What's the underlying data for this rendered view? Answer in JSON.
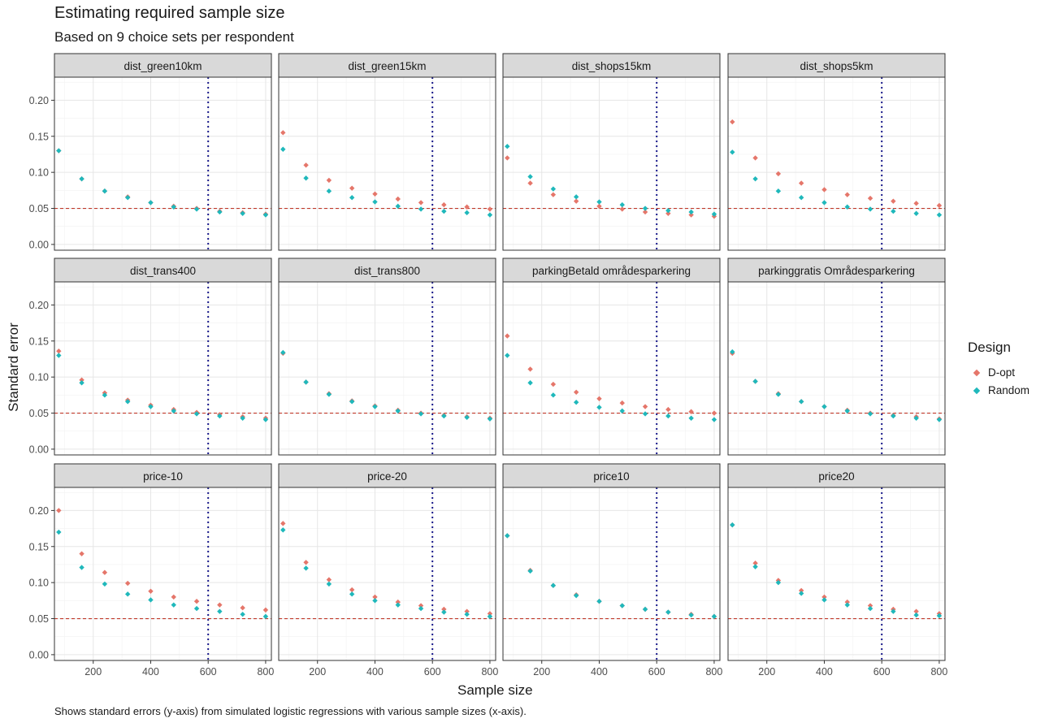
{
  "header": {
    "title": "Estimating required sample size",
    "subtitle": "Based on 9 choice sets per respondent"
  },
  "footer": {
    "caption": "Shows standard errors (y-axis) from simulated logistic regressions with various sample sizes (x-axis)."
  },
  "colors": {
    "D-opt": "#e5766a",
    "Random": "#1fb8bb",
    "threshold": "#c0392b",
    "vline": "#1a1a8c"
  },
  "chart_data": {
    "type": "scatter",
    "xlabel": "Sample size",
    "ylabel": "Standard error",
    "xlim": [
      65,
      820
    ],
    "ylim": [
      -0.008,
      0.232
    ],
    "x_ticks": [
      200,
      400,
      600,
      800
    ],
    "x_tick_labels": [
      "200",
      "400",
      "600",
      "800"
    ],
    "y_ticks": [
      0,
      0.05,
      0.1,
      0.15,
      0.2
    ],
    "y_tick_labels": [
      "0.00",
      "0.05",
      "0.10",
      "0.15",
      "0.20"
    ],
    "hline": 0.05,
    "vline": 600,
    "grid": true,
    "legend": {
      "title": "Design",
      "position": "right",
      "entries": [
        "D-opt",
        "Random"
      ]
    },
    "x": [
      80,
      160,
      240,
      320,
      400,
      480,
      560,
      640,
      720,
      800
    ],
    "facets": [
      {
        "label": "dist_green10km",
        "series": [
          {
            "name": "D-opt",
            "values": [
              0.13,
              0.091,
              0.074,
              0.066,
              0.058,
              0.053,
              0.05,
              0.046,
              0.044,
              0.042
            ]
          },
          {
            "name": "Random",
            "values": [
              0.13,
              0.091,
              0.074,
              0.065,
              0.058,
              0.052,
              0.049,
              0.045,
              0.043,
              0.041
            ]
          }
        ]
      },
      {
        "label": "dist_green15km",
        "series": [
          {
            "name": "D-opt",
            "values": [
              0.155,
              0.11,
              0.089,
              0.078,
              0.07,
              0.063,
              0.058,
              0.055,
              0.052,
              0.049
            ]
          },
          {
            "name": "Random",
            "values": [
              0.132,
              0.092,
              0.074,
              0.065,
              0.059,
              0.053,
              0.049,
              0.046,
              0.044,
              0.041
            ]
          }
        ]
      },
      {
        "label": "dist_shops15km",
        "series": [
          {
            "name": "D-opt",
            "values": [
              0.12,
              0.085,
              0.069,
              0.06,
              0.053,
              0.049,
              0.045,
              0.043,
              0.041,
              0.039
            ]
          },
          {
            "name": "Random",
            "values": [
              0.136,
              0.094,
              0.077,
              0.066,
              0.059,
              0.055,
              0.05,
              0.047,
              0.045,
              0.042
            ]
          }
        ]
      },
      {
        "label": "dist_shops5km",
        "series": [
          {
            "name": "D-opt",
            "values": [
              0.17,
              0.12,
              0.098,
              0.085,
              0.076,
              0.069,
              0.064,
              0.06,
              0.057,
              0.054
            ]
          },
          {
            "name": "Random",
            "values": [
              0.128,
              0.091,
              0.074,
              0.065,
              0.058,
              0.052,
              0.049,
              0.046,
              0.043,
              0.041
            ]
          }
        ]
      },
      {
        "label": "dist_trans400",
        "series": [
          {
            "name": "D-opt",
            "values": [
              0.136,
              0.096,
              0.078,
              0.068,
              0.061,
              0.055,
              0.051,
              0.048,
              0.045,
              0.043
            ]
          },
          {
            "name": "Random",
            "values": [
              0.13,
              0.092,
              0.075,
              0.066,
              0.059,
              0.053,
              0.049,
              0.046,
              0.043,
              0.041
            ]
          }
        ]
      },
      {
        "label": "dist_trans800",
        "series": [
          {
            "name": "D-opt",
            "values": [
              0.133,
              0.093,
              0.077,
              0.067,
              0.06,
              0.054,
              0.05,
              0.047,
              0.045,
              0.043
            ]
          },
          {
            "name": "Random",
            "values": [
              0.134,
              0.093,
              0.076,
              0.066,
              0.059,
              0.053,
              0.049,
              0.046,
              0.044,
              0.042
            ]
          }
        ]
      },
      {
        "label": "parkingBetald områdesparkering",
        "series": [
          {
            "name": "D-opt",
            "values": [
              0.157,
              0.111,
              0.09,
              0.079,
              0.07,
              0.064,
              0.059,
              0.055,
              0.052,
              0.05
            ]
          },
          {
            "name": "Random",
            "values": [
              0.13,
              0.092,
              0.075,
              0.065,
              0.058,
              0.053,
              0.049,
              0.046,
              0.043,
              0.041
            ]
          }
        ]
      },
      {
        "label": "parkinggratis Områdesparkering",
        "series": [
          {
            "name": "D-opt",
            "values": [
              0.133,
              0.094,
              0.077,
              0.066,
              0.059,
              0.054,
              0.05,
              0.047,
              0.045,
              0.042
            ]
          },
          {
            "name": "Random",
            "values": [
              0.135,
              0.094,
              0.076,
              0.066,
              0.059,
              0.053,
              0.049,
              0.046,
              0.043,
              0.041
            ]
          }
        ]
      },
      {
        "label": "price-10",
        "series": [
          {
            "name": "D-opt",
            "values": [
              0.2,
              0.14,
              0.114,
              0.099,
              0.088,
              0.08,
              0.074,
              0.069,
              0.065,
              0.062
            ]
          },
          {
            "name": "Random",
            "values": [
              0.17,
              0.121,
              0.098,
              0.084,
              0.076,
              0.069,
              0.064,
              0.06,
              0.056,
              0.053
            ]
          }
        ]
      },
      {
        "label": "price-20",
        "series": [
          {
            "name": "D-opt",
            "values": [
              0.182,
              0.128,
              0.104,
              0.09,
              0.08,
              0.073,
              0.068,
              0.063,
              0.06,
              0.057
            ]
          },
          {
            "name": "Random",
            "values": [
              0.173,
              0.12,
              0.098,
              0.084,
              0.075,
              0.069,
              0.064,
              0.059,
              0.056,
              0.053
            ]
          }
        ]
      },
      {
        "label": "price10",
        "series": [
          {
            "name": "D-opt",
            "values": [
              0.165,
              0.117,
              0.096,
              0.083,
              0.074,
              0.068,
              0.063,
              0.059,
              0.056,
              0.053
            ]
          },
          {
            "name": "Random",
            "values": [
              0.165,
              0.116,
              0.096,
              0.082,
              0.074,
              0.068,
              0.063,
              0.059,
              0.055,
              0.053
            ]
          }
        ]
      },
      {
        "label": "price20",
        "series": [
          {
            "name": "D-opt",
            "values": [
              0.18,
              0.127,
              0.103,
              0.089,
              0.08,
              0.073,
              0.068,
              0.063,
              0.06,
              0.057
            ]
          },
          {
            "name": "Random",
            "values": [
              0.18,
              0.122,
              0.1,
              0.085,
              0.076,
              0.069,
              0.064,
              0.06,
              0.055,
              0.054
            ]
          }
        ]
      }
    ]
  }
}
